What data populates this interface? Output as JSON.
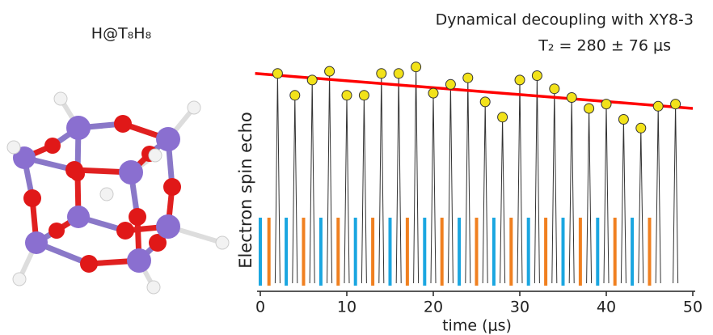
{
  "molecule": {
    "label": "H@T₈H₈"
  },
  "chart_data": {
    "type": "scatter",
    "title": "Dynamical decoupling with XY8-3",
    "subtitle": "T₂ = 280 ± 76 μs",
    "xlabel": "time (μs)",
    "ylabel": "Electron spin echo",
    "xlim": [
      0,
      50
    ],
    "xticks": [
      0,
      10,
      20,
      30,
      40,
      50
    ],
    "ylim": [
      0,
      1
    ],
    "x": [
      2,
      4,
      6,
      8,
      10,
      12,
      14,
      16,
      18,
      20,
      22,
      24,
      26,
      28,
      30,
      32,
      34,
      36,
      38,
      40,
      42,
      44,
      46,
      48
    ],
    "values": [
      0.96,
      0.86,
      0.93,
      0.97,
      0.86,
      0.86,
      0.96,
      0.96,
      0.99,
      0.87,
      0.91,
      0.94,
      0.83,
      0.76,
      0.93,
      0.95,
      0.89,
      0.85,
      0.8,
      0.82,
      0.75,
      0.71,
      0.81,
      0.82
    ],
    "color": "#f2e21a",
    "fit": {
      "x": [
        -0.6,
        50
      ],
      "values": [
        0.96,
        0.8
      ],
      "color": "#ff0000"
    },
    "pulses": [
      {
        "color": "#1aa6e0",
        "height": 0.3,
        "x": [
          0,
          3,
          7,
          11,
          15,
          19,
          23,
          27,
          31,
          35,
          39,
          43
        ]
      },
      {
        "color": "#f08020",
        "height": 0.3,
        "x": [
          1,
          5,
          9,
          13,
          17,
          21,
          25,
          29,
          33,
          37,
          41,
          45
        ]
      }
    ]
  }
}
